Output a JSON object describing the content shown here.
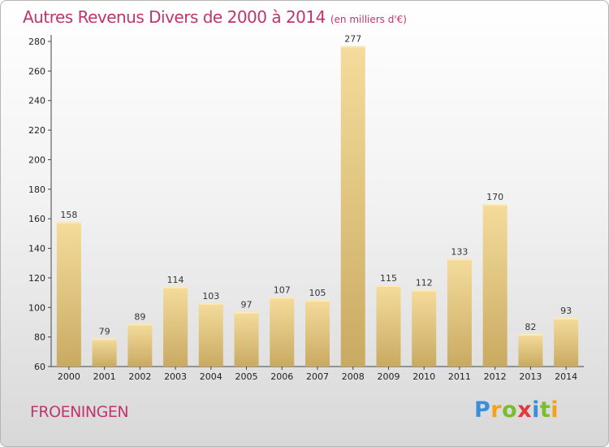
{
  "chart_data": {
    "type": "bar",
    "title": "Autres Revenus Divers de 2000 à 2014",
    "subtitle": "(en milliers d'€)",
    "categories": [
      "2000",
      "2001",
      "2002",
      "2003",
      "2004",
      "2005",
      "2006",
      "2007",
      "2008",
      "2009",
      "2010",
      "2011",
      "2012",
      "2013",
      "2014"
    ],
    "values": [
      158,
      79,
      89,
      114,
      103,
      97,
      107,
      105,
      277,
      115,
      112,
      133,
      170,
      82,
      93
    ],
    "ylim": [
      60,
      280
    ],
    "yticks": [
      60,
      80,
      100,
      120,
      140,
      160,
      180,
      200,
      220,
      240,
      260,
      280
    ],
    "grid": false,
    "colors": {
      "bar_light": "#f5dc9c",
      "bar_dark": "#c9aa62"
    }
  },
  "location": "FROENINGEN",
  "logo": {
    "letters": [
      "P",
      "r",
      "o",
      "x",
      "i",
      "t",
      "i"
    ],
    "colors": [
      "#3b8fd9",
      "#f3a21b",
      "#7cbc2f",
      "#e03a3a",
      "#3b8fd9",
      "#7cbc2f",
      "#f3a21b"
    ]
  },
  "accent_color": "#c0356e"
}
